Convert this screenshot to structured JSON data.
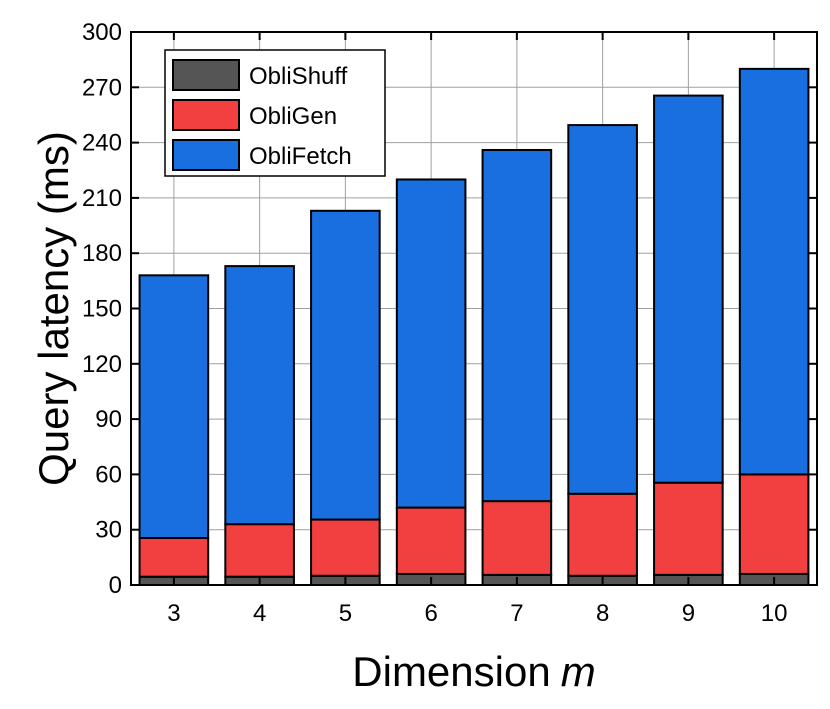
{
  "chart_data": {
    "type": "bar",
    "stacked": true,
    "xlabel": "Dimension",
    "xlabel_var": "m",
    "ylabel": "Query latency (ms)",
    "ylim": [
      0,
      300
    ],
    "yticks": [
      0,
      30,
      60,
      90,
      120,
      150,
      180,
      210,
      240,
      270,
      300
    ],
    "grid": true,
    "legend_position": "top-left",
    "categories": [
      "3",
      "4",
      "5",
      "6",
      "7",
      "8",
      "9",
      "10"
    ],
    "series": [
      {
        "name": "ObliShuff",
        "color": "#555555",
        "values": [
          4.5,
          4.5,
          5,
          6,
          5.5,
          5,
          5.5,
          6
        ]
      },
      {
        "name": "ObliGen",
        "color": "#f24040",
        "values": [
          21,
          28.5,
          30.5,
          36,
          40,
          44.5,
          50,
          54
        ]
      },
      {
        "name": "ObliFetch",
        "color": "#1a6fe0",
        "values": [
          142.5,
          140,
          167.5,
          178,
          190.5,
          200,
          210,
          220
        ]
      }
    ]
  }
}
